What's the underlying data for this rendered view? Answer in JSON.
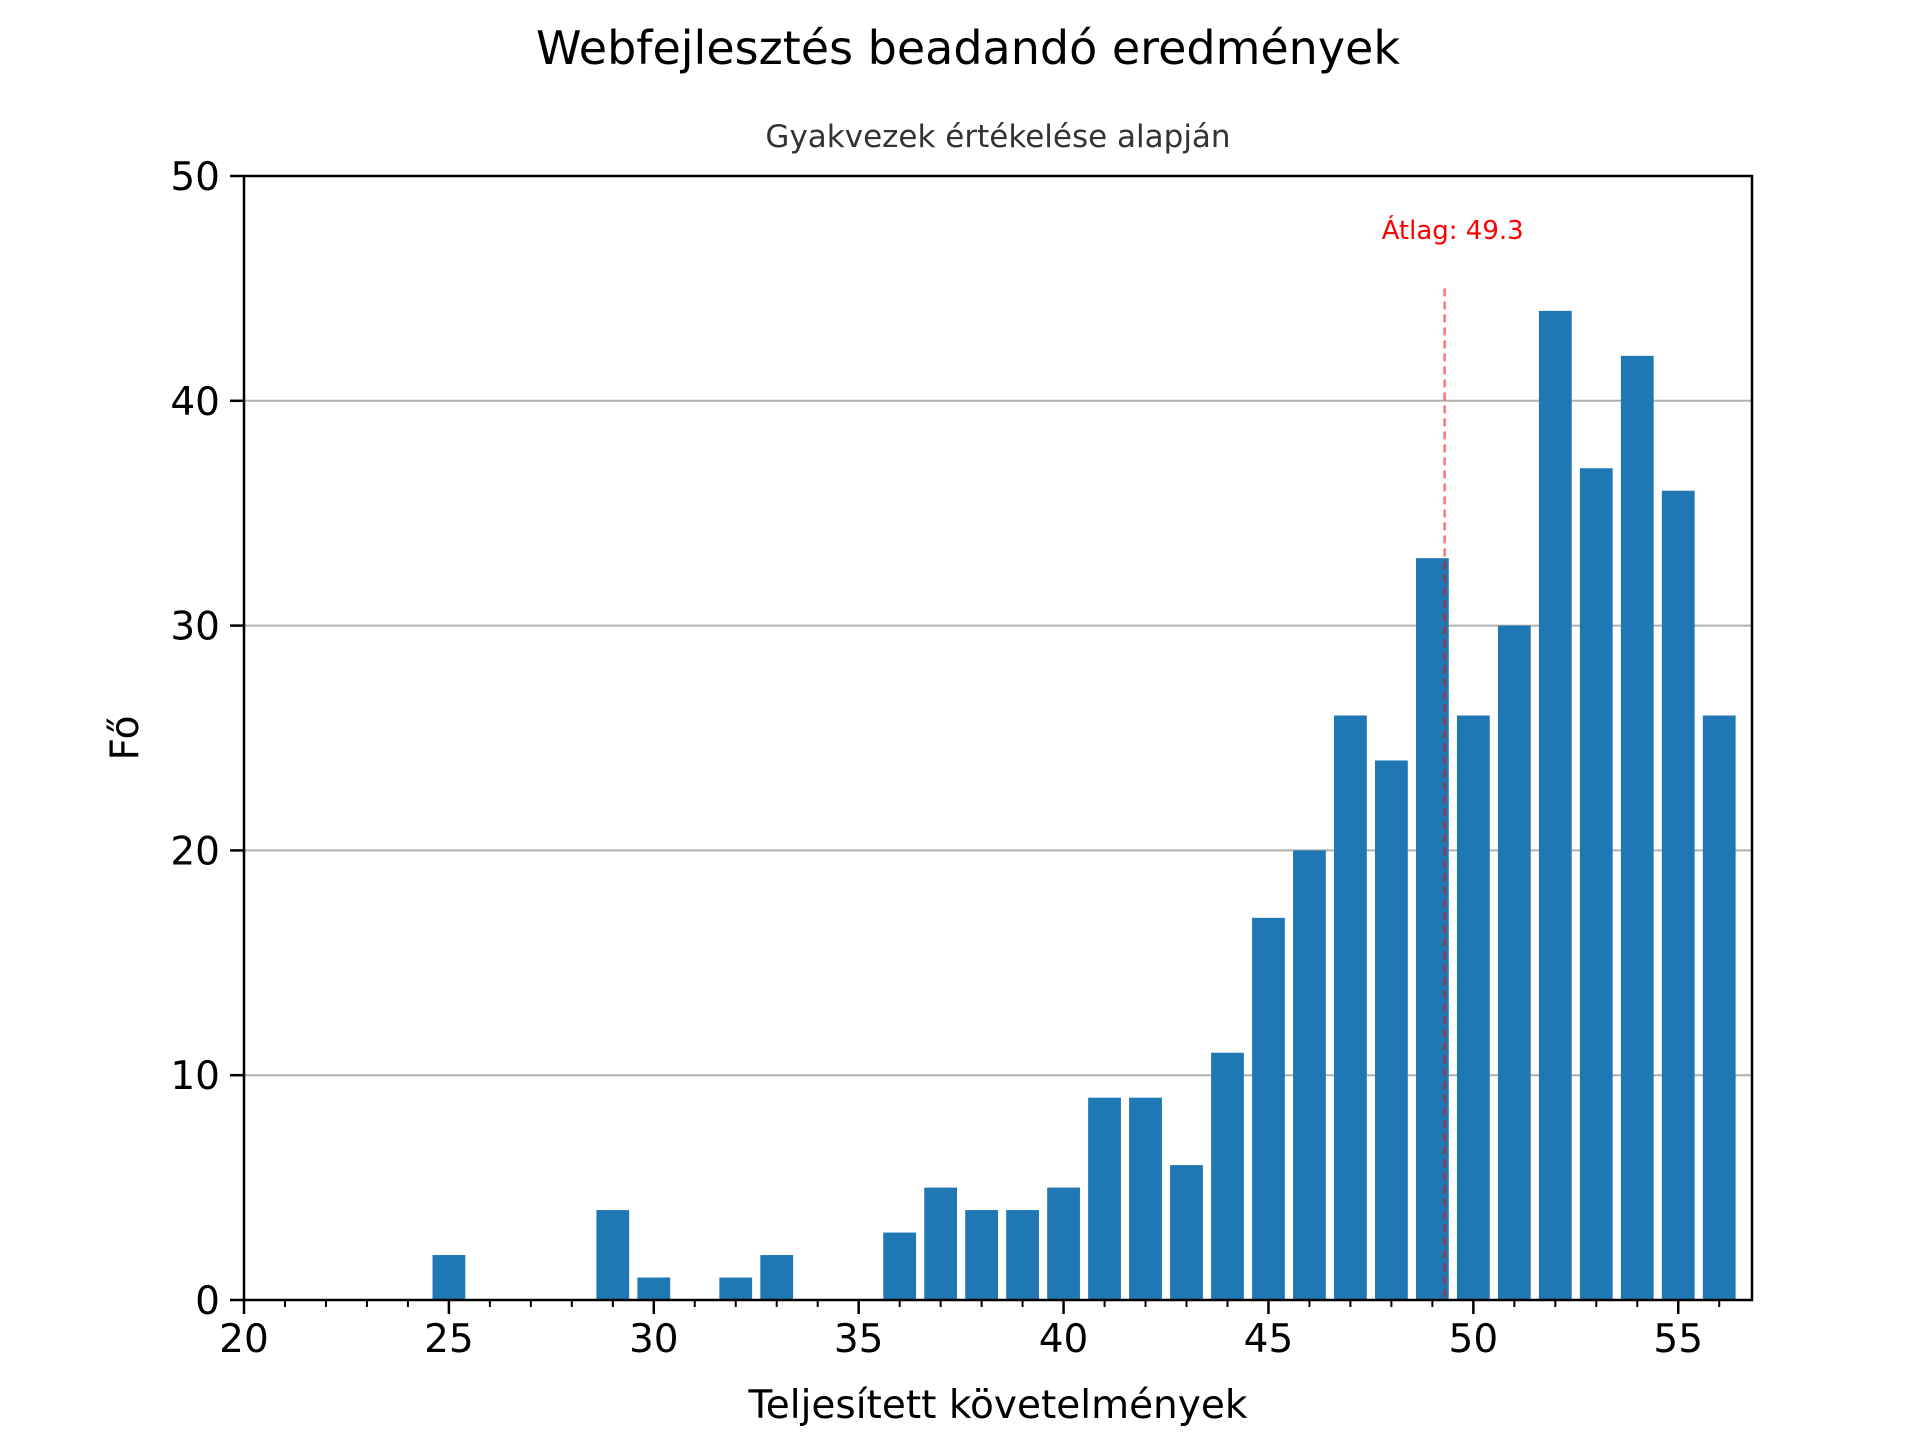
{
  "chart_data": {
    "type": "bar",
    "title": "Webfejlesztés beadandó eredmények",
    "subtitle": "Gyakvezek értékelése alapján",
    "xlabel": "Teljesített követelmények",
    "ylabel": "Fő",
    "xlim": [
      20,
      56.8
    ],
    "ylim": [
      0,
      50
    ],
    "xticks": [
      "20",
      "25",
      "30",
      "35",
      "40",
      "45",
      "50",
      "55"
    ],
    "yticks": [
      "0",
      "10",
      "20",
      "30",
      "40",
      "50"
    ],
    "grid": "y",
    "bar_color": "#1f77b4",
    "x": [
      25,
      29,
      30,
      32,
      33,
      36,
      37,
      38,
      39,
      40,
      41,
      42,
      43,
      44,
      45,
      46,
      47,
      48,
      49,
      50,
      51,
      52,
      53,
      54,
      55,
      56
    ],
    "values": [
      2,
      4,
      1,
      1,
      2,
      3,
      5,
      4,
      4,
      5,
      9,
      9,
      6,
      11,
      17,
      20,
      26,
      24,
      33,
      26,
      30,
      44,
      37,
      42,
      36,
      26
    ],
    "mean_line": {
      "value": 49.3,
      "label": "Átlag: 49.3",
      "color": "#ff0000"
    }
  }
}
